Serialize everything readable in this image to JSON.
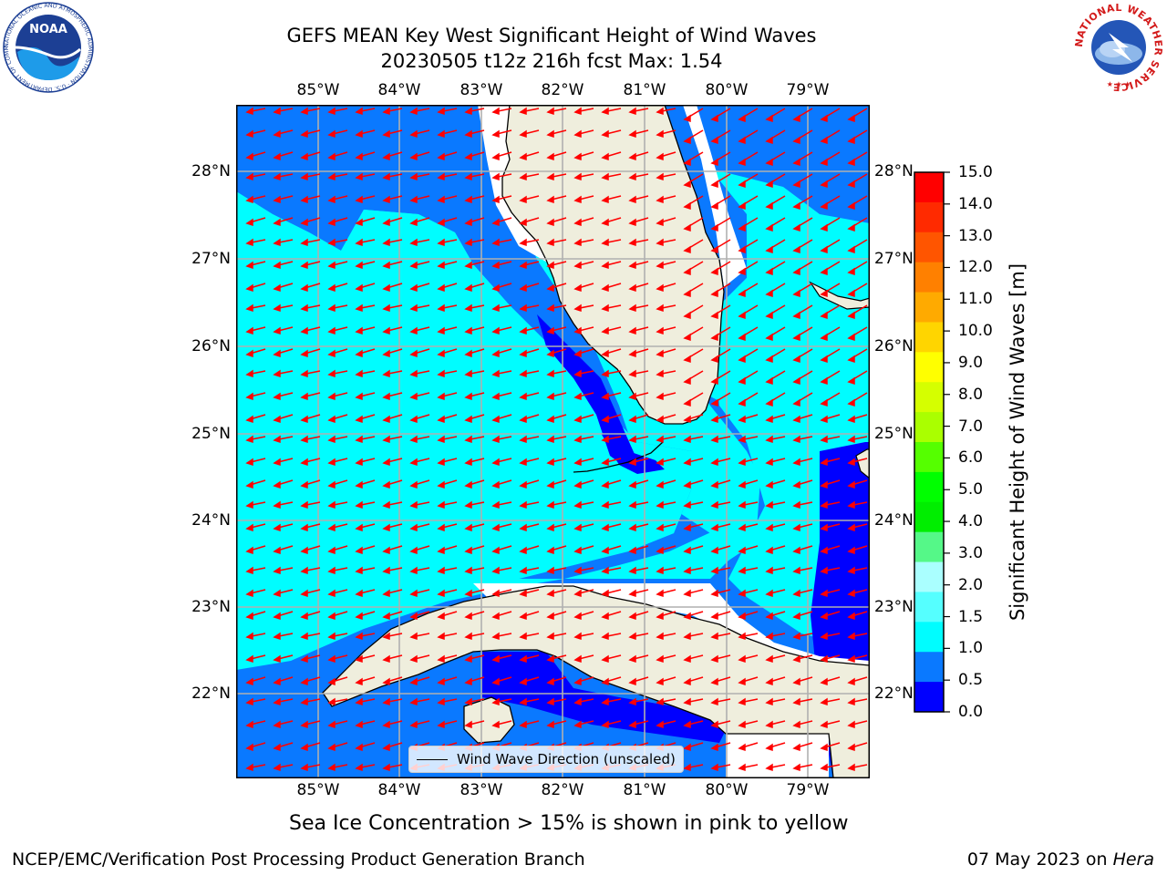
{
  "title": {
    "line1": "GEFS MEAN Key West Significant Height of Wind Waves",
    "line2": "20230505 t12z 216h fcst   Max: 1.54"
  },
  "map": {
    "lon_ticks": [
      "85°W",
      "84°W",
      "83°W",
      "82°W",
      "81°W",
      "80°W",
      "79°W"
    ],
    "lat_ticks": [
      "28°N",
      "27°N",
      "26°N",
      "25°N",
      "24°N",
      "23°N",
      "22°N"
    ],
    "legend_label": "Wind Wave Direction (unscaled)",
    "colors": {
      "land": "#efeedd",
      "level_0_0_5": "#0000ff",
      "level_0_5_1_0": "#0a79ff",
      "level_1_0_1_5": "#00fdff",
      "no_data": "#ffffff",
      "arrow": "#ff0000",
      "grid": "#b0b0b0"
    }
  },
  "colorbar": {
    "label": "Significant Height of Wind Waves [m]",
    "ticks": [
      "15.0",
      "14.0",
      "13.0",
      "12.0",
      "11.0",
      "10.0",
      "9.0",
      "8.0",
      "7.0",
      "6.0",
      "5.0",
      "4.0",
      "3.0",
      "2.0",
      "1.5",
      "1.0",
      "0.5",
      "0.0"
    ],
    "colors": [
      "#ff0000",
      "#ff2a00",
      "#ff5500",
      "#ff8000",
      "#ffaa00",
      "#ffd500",
      "#ffff00",
      "#d5ff00",
      "#aaff00",
      "#55ff00",
      "#00ff00",
      "#00ee00",
      "#55f888",
      "#aaffff",
      "#55ffff",
      "#00fdff",
      "#0a79ff",
      "#0000ff"
    ]
  },
  "caption": "Sea Ice Concentration > 15% is shown in pink to yellow",
  "footer": {
    "left": "NCEP/EMC/Verification Post Processing Product Generation Branch",
    "date": "07 May 2023 on ",
    "host": "Hera"
  },
  "logos": {
    "noaa": "NOAA",
    "noaa_ring": "NATIONAL OCEANIC AND ATMOSPHERIC ADMINISTRATION · U.S. DEPARTMENT OF COMMERCE",
    "nws_ring": "NATIONAL WEATHER SERVICE"
  }
}
